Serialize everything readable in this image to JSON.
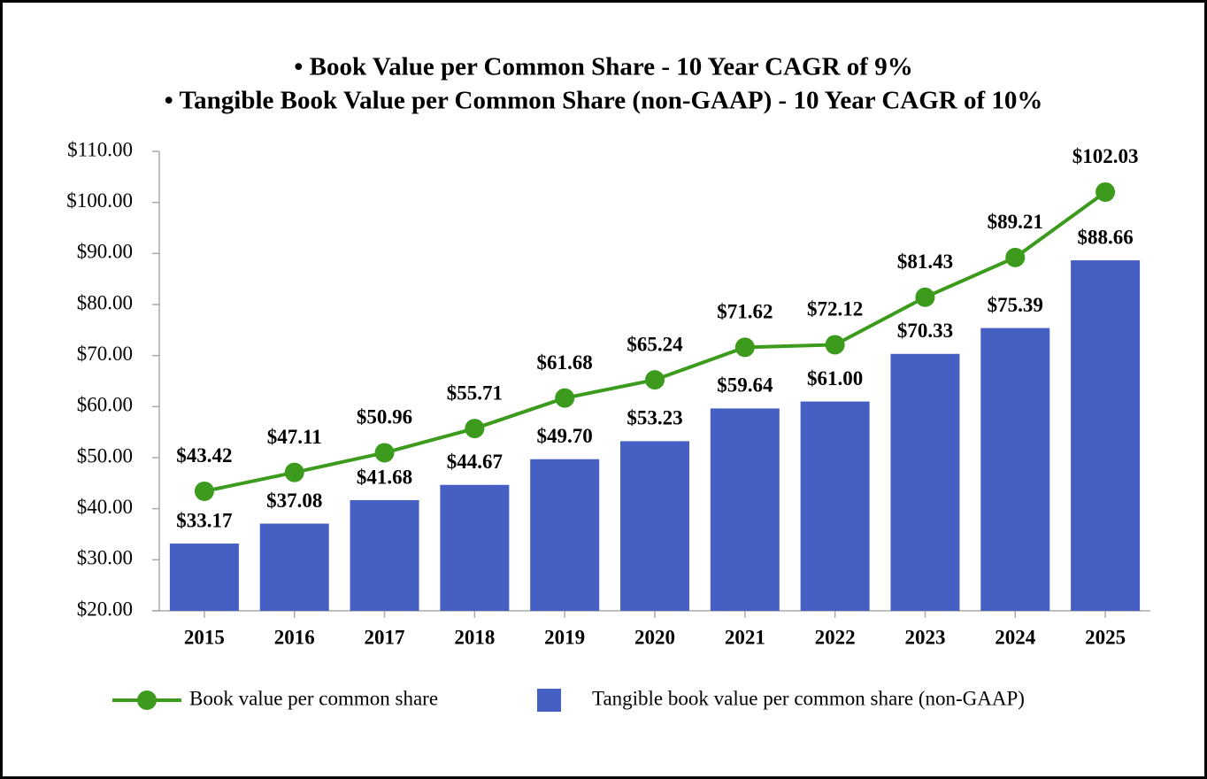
{
  "chart_data": {
    "type": "bar",
    "title_lines": [
      "• Book Value per Common Share - 10 Year CAGR of 9%",
      "• Tangible Book Value per Common Share (non-GAAP) - 10 Year CAGR of 10%"
    ],
    "categories": [
      "2015",
      "2016",
      "2017",
      "2018",
      "2019",
      "2020",
      "2021",
      "2022",
      "2023",
      "2024",
      "2025"
    ],
    "series": [
      {
        "name": "Book value per common share",
        "type": "line",
        "color": "#3c9a1c",
        "values": [
          43.42,
          47.11,
          50.96,
          55.71,
          61.68,
          65.24,
          71.62,
          72.12,
          81.43,
          89.21,
          102.03
        ],
        "value_labels": [
          "$43.42",
          "$47.11",
          "$50.96",
          "$55.71",
          "$61.68",
          "$65.24",
          "$71.62",
          "$72.12",
          "$81.43",
          "$89.21",
          "$102.03"
        ]
      },
      {
        "name": "Tangible book value per common share (non-GAAP)",
        "type": "bar",
        "color": "#4560c2",
        "values": [
          33.17,
          37.08,
          41.68,
          44.67,
          49.7,
          53.23,
          59.64,
          61.0,
          70.33,
          75.39,
          88.66
        ],
        "value_labels": [
          "$33.17",
          "$37.08",
          "$41.68",
          "$44.67",
          "$49.70",
          "$53.23",
          "$59.64",
          "$61.00",
          "$70.33",
          "$75.39",
          "$88.66"
        ]
      }
    ],
    "ylim": [
      20,
      110
    ],
    "yticks": [
      {
        "value": 20,
        "label": "$20.00"
      },
      {
        "value": 30,
        "label": "$30.00"
      },
      {
        "value": 40,
        "label": "$40.00"
      },
      {
        "value": 50,
        "label": "$50.00"
      },
      {
        "value": 60,
        "label": "$60.00"
      },
      {
        "value": 70,
        "label": "$70.00"
      },
      {
        "value": 80,
        "label": "$80.00"
      },
      {
        "value": 90,
        "label": "$90.00"
      },
      {
        "value": 100,
        "label": "$100.00"
      },
      {
        "value": 110,
        "label": "$110.00"
      }
    ],
    "grid": false
  }
}
